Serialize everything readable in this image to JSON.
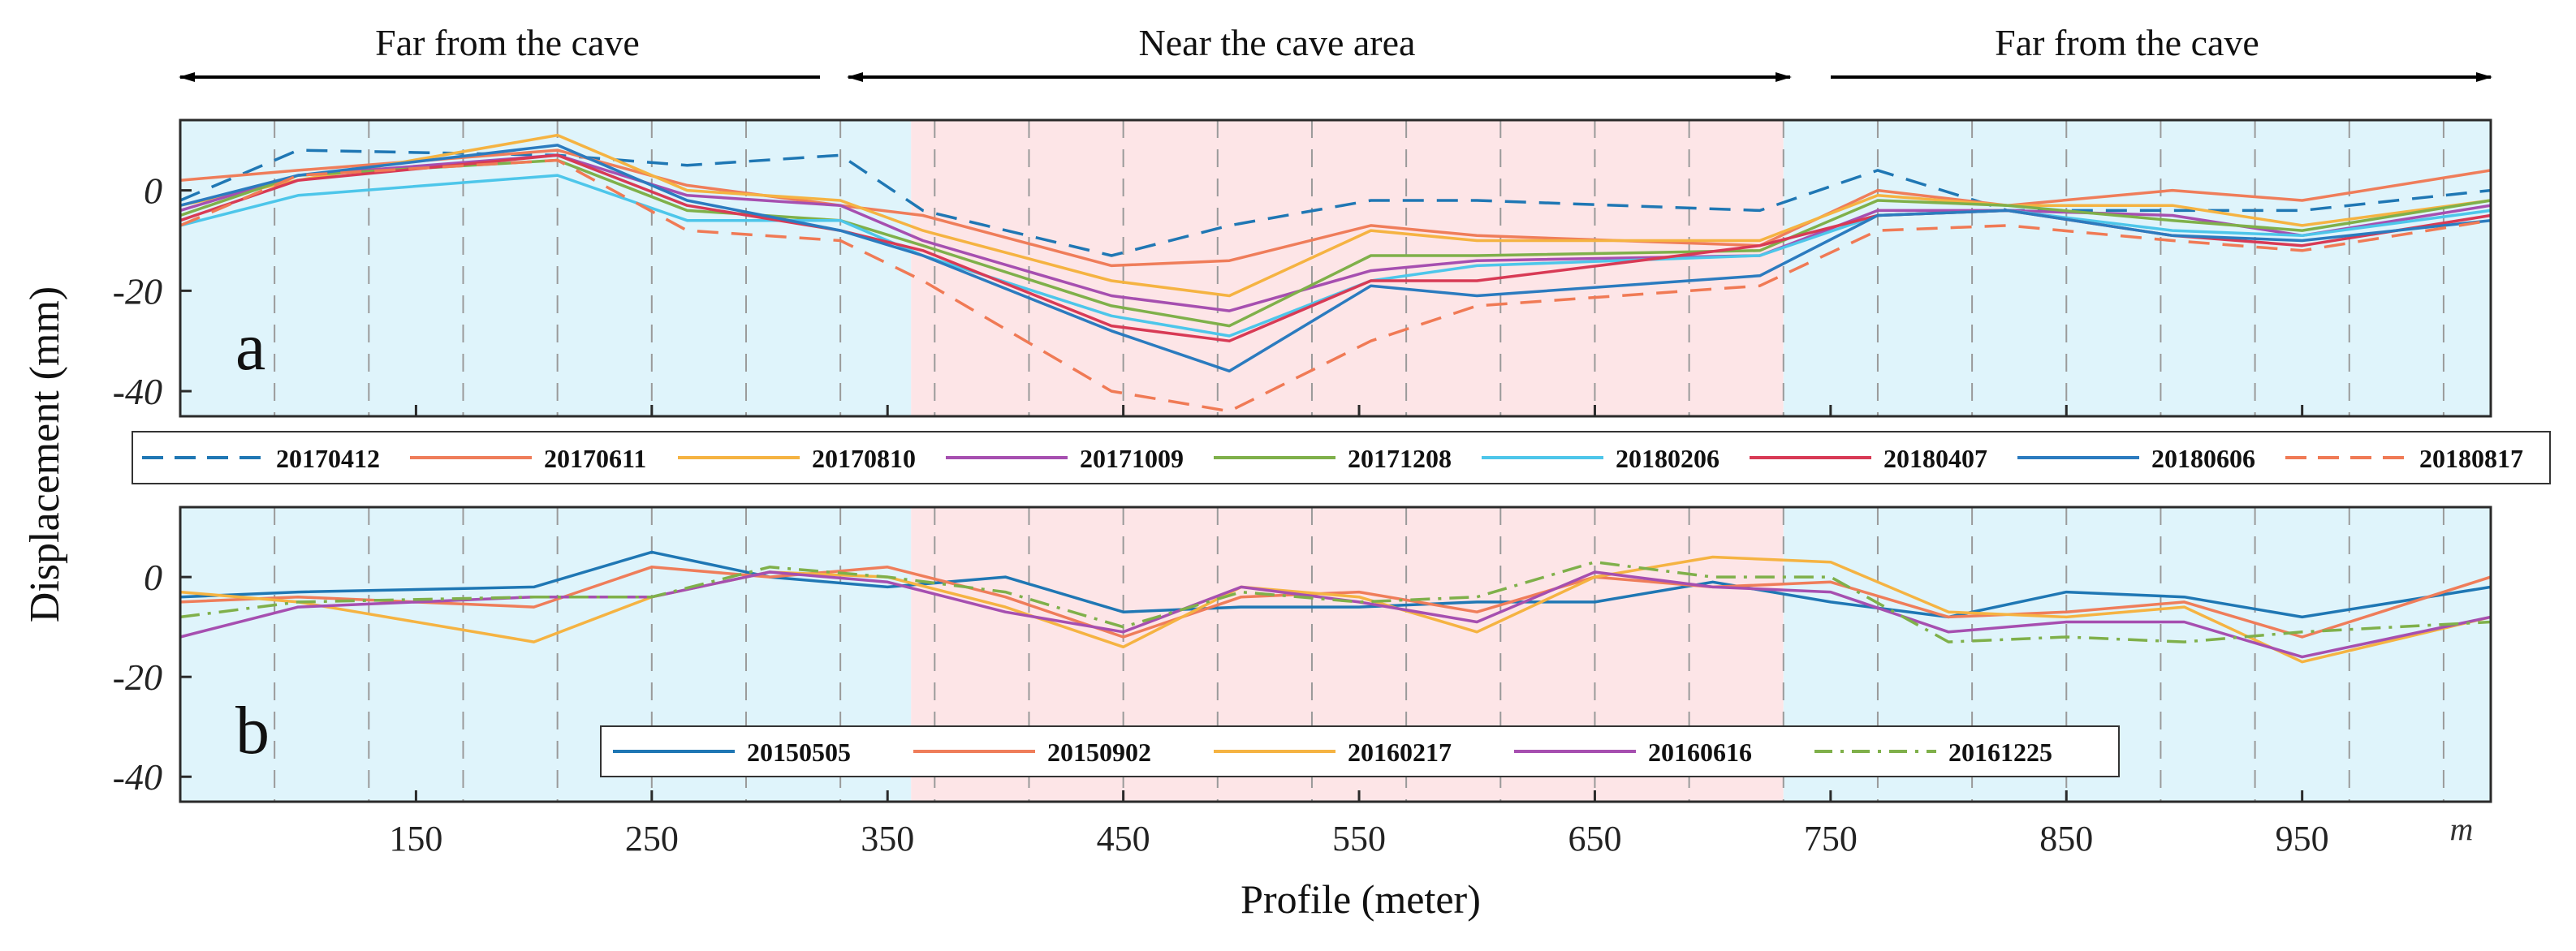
{
  "figure": {
    "region_left_label": "Far from the cave",
    "region_center_label": "Near the cave area",
    "region_right_label": "Far from the cave",
    "y_axis_label": "Displacement (mm)",
    "x_axis_label": "Profile (meter)",
    "x_unit_label": "m",
    "colors": {
      "far_zone": "#dff4fb",
      "near_zone": "#fde5e7",
      "axis": "#2a2a2a",
      "grid": "#9a9a9a"
    }
  },
  "chart_data": [
    {
      "type": "line",
      "panel_label": "a",
      "xlabel": "Profile (meter)",
      "ylabel": "Displacement (mm)",
      "xlim": [
        50,
        1030
      ],
      "ylim": [
        -45,
        14
      ],
      "x_ticks": [
        150,
        250,
        350,
        450,
        550,
        650,
        750,
        850,
        950
      ],
      "x_tick_labels": [
        "150",
        "250",
        "350",
        "450",
        "550",
        "650",
        "750",
        "850",
        "950"
      ],
      "y_ticks": [
        0,
        -20,
        -40
      ],
      "y_tick_labels": [
        "0",
        "-20",
        "-40"
      ],
      "grid": "vertical dashed",
      "zones": [
        {
          "name": "far",
          "x_start": 50,
          "x_end": 360
        },
        {
          "name": "near",
          "x_start": 360,
          "x_end": 730
        },
        {
          "name": "far",
          "x_start": 730,
          "x_end": 1030
        }
      ],
      "x": [
        50,
        100,
        210,
        265,
        330,
        365,
        445,
        495,
        555,
        600,
        720,
        770,
        825,
        895,
        950,
        1030
      ],
      "series": [
        {
          "name": "20170412",
          "color": "#1f77b4",
          "dash": "dashed",
          "values": [
            -2,
            8,
            7,
            5,
            7,
            -4,
            -13,
            -7,
            -2,
            -2,
            -4,
            4,
            -4,
            -4,
            -4,
            0
          ]
        },
        {
          "name": "20170611",
          "color": "#ef7d5a",
          "dash": "solid",
          "values": [
            2,
            4,
            8,
            1,
            -3,
            -5,
            -15,
            -14,
            -7,
            -9,
            -11,
            0,
            -3,
            0,
            -2,
            4
          ]
        },
        {
          "name": "20170810",
          "color": "#f5b342",
          "dash": "solid",
          "values": [
            -3,
            2,
            11,
            0,
            -2,
            -8,
            -18,
            -21,
            -8,
            -10,
            -10,
            -1,
            -3,
            -3,
            -7,
            -2
          ]
        },
        {
          "name": "20171009",
          "color": "#a64fb0",
          "dash": "solid",
          "values": [
            -4,
            3,
            7,
            -1,
            -3,
            -10,
            -21,
            -24,
            -16,
            -14,
            -13,
            -4,
            -4,
            -5,
            -9,
            -3
          ]
        },
        {
          "name": "20171208",
          "color": "#7fb04a",
          "dash": "solid",
          "values": [
            -5,
            3,
            6,
            -4,
            -6,
            -11,
            -23,
            -27,
            -13,
            -13,
            -12,
            -2,
            -3,
            -6,
            -8,
            -2
          ]
        },
        {
          "name": "20180206",
          "color": "#4dc6ea",
          "dash": "solid",
          "values": [
            -7,
            -1,
            3,
            -6,
            -6,
            -13,
            -25,
            -29,
            -18,
            -15,
            -13,
            -5,
            -4,
            -8,
            -9,
            -4
          ]
        },
        {
          "name": "20180407",
          "color": "#d83a55",
          "dash": "solid",
          "values": [
            -6,
            2,
            7,
            -3,
            -8,
            -12,
            -27,
            -30,
            -18,
            -18,
            -11,
            -5,
            -4,
            -9,
            -11,
            -5
          ]
        },
        {
          "name": "20180606",
          "color": "#2b7bbf",
          "dash": "solid",
          "values": [
            -3,
            3,
            9,
            -2,
            -8,
            -13,
            -28,
            -36,
            -19,
            -21,
            -17,
            -5,
            -4,
            -9,
            -10,
            -6
          ]
        },
        {
          "name": "20180817",
          "color": "#f07a55",
          "dash": "dashed",
          "values": [
            -7,
            3,
            6,
            -8,
            -10,
            -18,
            -40,
            -44,
            -30,
            -23,
            -19,
            -8,
            -7,
            -10,
            -12,
            -6
          ]
        }
      ]
    },
    {
      "type": "line",
      "panel_label": "b",
      "xlabel": "Profile (meter)",
      "ylabel": "Displacement (mm)",
      "xlim": [
        50,
        1030
      ],
      "ylim": [
        -45,
        14
      ],
      "x_ticks": [
        150,
        250,
        350,
        450,
        550,
        650,
        750,
        850,
        950
      ],
      "x_tick_labels": [
        "150",
        "250",
        "350",
        "450",
        "550",
        "650",
        "750",
        "850",
        "950"
      ],
      "y_ticks": [
        0,
        -20,
        -40
      ],
      "y_tick_labels": [
        "0",
        "-20",
        "-40"
      ],
      "grid": "vertical dashed",
      "zones": [
        {
          "name": "far",
          "x_start": 50,
          "x_end": 360
        },
        {
          "name": "near",
          "x_start": 360,
          "x_end": 730
        },
        {
          "name": "far",
          "x_start": 730,
          "x_end": 1030
        }
      ],
      "x": [
        50,
        100,
        200,
        250,
        300,
        350,
        400,
        450,
        500,
        550,
        600,
        650,
        700,
        750,
        800,
        850,
        900,
        950,
        1030
      ],
      "series": [
        {
          "name": "20150505",
          "color": "#1f77b4",
          "dash": "solid",
          "values": [
            -4,
            -3,
            -2,
            5,
            0,
            -2,
            0,
            -7,
            -6,
            -6,
            -5,
            -5,
            -1,
            -5,
            -8,
            -3,
            -4,
            -8,
            -2
          ]
        },
        {
          "name": "20150902",
          "color": "#ef7d5a",
          "dash": "solid",
          "values": [
            -5,
            -4,
            -6,
            2,
            0,
            2,
            -4,
            -12,
            -4,
            -3,
            -7,
            0,
            -2,
            -1,
            -8,
            -7,
            -5,
            -12,
            0
          ]
        },
        {
          "name": "20160217",
          "color": "#f5b342",
          "dash": "solid",
          "values": [
            -3,
            -5,
            -13,
            -4,
            1,
            0,
            -6,
            -14,
            -2,
            -4,
            -11,
            0,
            4,
            3,
            -7,
            -8,
            -6,
            -17,
            -8
          ]
        },
        {
          "name": "20160616",
          "color": "#a64fb0",
          "dash": "solid",
          "values": [
            -12,
            -6,
            -4,
            -4,
            1,
            -1,
            -7,
            -11,
            -2,
            -5,
            -9,
            1,
            -2,
            -3,
            -11,
            -9,
            -9,
            -16,
            -8
          ]
        },
        {
          "name": "20161225",
          "color": "#7fb04a",
          "dash": "dashdot",
          "values": [
            -8,
            -5,
            -4,
            -4,
            2,
            0,
            -3,
            -10,
            -3,
            -5,
            -4,
            3,
            0,
            0,
            -13,
            -12,
            -13,
            -11,
            -9
          ]
        }
      ]
    }
  ]
}
